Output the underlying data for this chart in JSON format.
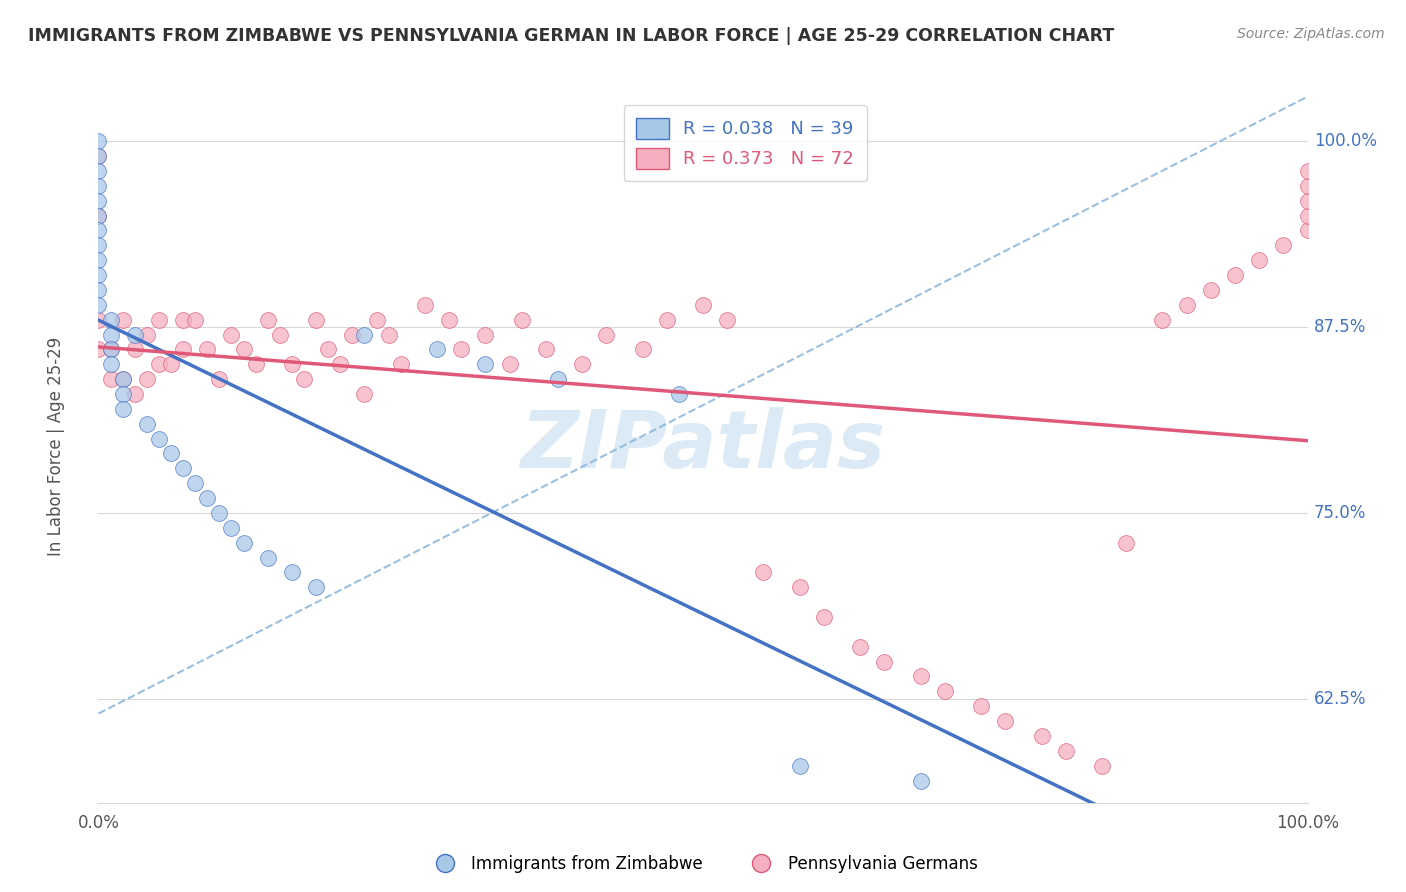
{
  "title": "IMMIGRANTS FROM ZIMBABWE VS PENNSYLVANIA GERMAN IN LABOR FORCE | AGE 25-29 CORRELATION CHART",
  "source": "Source: ZipAtlas.com",
  "ylabel": "In Labor Force | Age 25-29",
  "xlim": [
    0.0,
    1.0
  ],
  "ylim": [
    0.555,
    1.035
  ],
  "yticks": [
    0.625,
    0.75,
    0.875,
    1.0
  ],
  "ytick_labels": [
    "62.5%",
    "75.0%",
    "87.5%",
    "100.0%"
  ],
  "r_zimbabwe": 0.038,
  "n_zimbabwe": 39,
  "r_pennsylvania": 0.373,
  "n_pennsylvania": 72,
  "legend_labels": [
    "Immigrants from Zimbabwe",
    "Pennsylvania Germans"
  ],
  "color_zimbabwe": "#a8c8e8",
  "color_pennsylvania": "#f4afc0",
  "line_color_zimbabwe": "#4472c4",
  "line_color_pennsylvania": "#e05878",
  "dashed_color": "#8ab4d8",
  "watermark": "ZIPatlas",
  "watermark_color": "#dceaf5",
  "background_color": "#ffffff",
  "grid_color": "#d8d8d8",
  "title_color": "#333333",
  "source_color": "#888888",
  "axis_label_color": "#555555",
  "tick_label_color": "#4472c4",
  "zim_x": [
    0.0,
    0.0,
    0.0,
    0.0,
    0.0,
    0.0,
    0.0,
    0.0,
    0.0,
    0.0,
    0.0,
    0.0,
    0.01,
    0.01,
    0.01,
    0.01,
    0.02,
    0.02,
    0.02,
    0.03,
    0.04,
    0.05,
    0.06,
    0.07,
    0.08,
    0.09,
    0.1,
    0.11,
    0.12,
    0.14,
    0.16,
    0.18,
    0.22,
    0.28,
    0.32,
    0.38,
    0.48,
    0.58,
    0.68
  ],
  "zim_y": [
    1.0,
    0.99,
    0.98,
    0.97,
    0.96,
    0.95,
    0.94,
    0.93,
    0.92,
    0.91,
    0.9,
    0.89,
    0.88,
    0.87,
    0.86,
    0.85,
    0.84,
    0.83,
    0.82,
    0.87,
    0.81,
    0.8,
    0.79,
    0.78,
    0.77,
    0.76,
    0.75,
    0.74,
    0.73,
    0.72,
    0.71,
    0.7,
    0.87,
    0.86,
    0.85,
    0.84,
    0.83,
    0.58,
    0.57
  ],
  "pa_x": [
    0.0,
    0.0,
    0.0,
    0.0,
    0.01,
    0.01,
    0.02,
    0.02,
    0.03,
    0.03,
    0.04,
    0.04,
    0.05,
    0.05,
    0.06,
    0.07,
    0.07,
    0.08,
    0.09,
    0.1,
    0.11,
    0.12,
    0.13,
    0.14,
    0.15,
    0.16,
    0.17,
    0.18,
    0.19,
    0.2,
    0.21,
    0.22,
    0.23,
    0.24,
    0.25,
    0.27,
    0.29,
    0.3,
    0.32,
    0.34,
    0.35,
    0.37,
    0.4,
    0.42,
    0.45,
    0.47,
    0.5,
    0.52,
    0.55,
    0.58,
    0.6,
    0.63,
    0.65,
    0.68,
    0.7,
    0.73,
    0.75,
    0.78,
    0.8,
    0.83,
    0.85,
    0.88,
    0.9,
    0.92,
    0.94,
    0.96,
    0.98,
    1.0,
    1.0,
    1.0,
    1.0,
    1.0
  ],
  "pa_y": [
    0.99,
    0.95,
    0.88,
    0.86,
    0.86,
    0.84,
    0.88,
    0.84,
    0.86,
    0.83,
    0.87,
    0.84,
    0.88,
    0.85,
    0.85,
    0.88,
    0.86,
    0.88,
    0.86,
    0.84,
    0.87,
    0.86,
    0.85,
    0.88,
    0.87,
    0.85,
    0.84,
    0.88,
    0.86,
    0.85,
    0.87,
    0.83,
    0.88,
    0.87,
    0.85,
    0.89,
    0.88,
    0.86,
    0.87,
    0.85,
    0.88,
    0.86,
    0.85,
    0.87,
    0.86,
    0.88,
    0.89,
    0.88,
    0.71,
    0.7,
    0.68,
    0.66,
    0.65,
    0.64,
    0.63,
    0.62,
    0.61,
    0.6,
    0.59,
    0.58,
    0.73,
    0.88,
    0.89,
    0.9,
    0.91,
    0.92,
    0.93,
    0.94,
    0.95,
    0.96,
    0.97,
    0.98
  ]
}
